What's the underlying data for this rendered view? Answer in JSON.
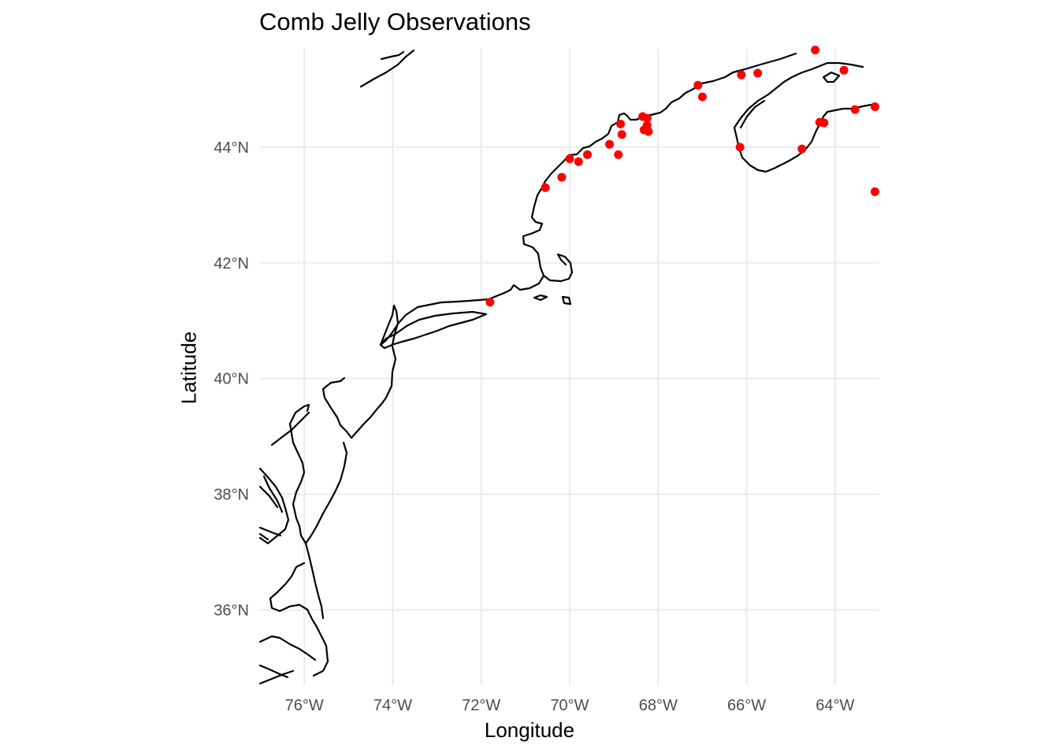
{
  "title": "Comb Jelly Observations",
  "colors": {
    "grid": "#ebebeb",
    "coast": "#000000",
    "point": "#ff0000",
    "tick_text": "#4d4d4d"
  },
  "chart_data": {
    "type": "scatter",
    "title": "Comb Jelly Observations",
    "xlabel": "Longitude",
    "ylabel": "Latitude",
    "xlim": [
      -77,
      -63
    ],
    "ylim": [
      34.7,
      45.7
    ],
    "grid": true,
    "legend": "none",
    "x_ticks": [
      {
        "value": -76,
        "label": "76°W"
      },
      {
        "value": -74,
        "label": "74°W"
      },
      {
        "value": -72,
        "label": "72°W"
      },
      {
        "value": -70,
        "label": "70°W"
      },
      {
        "value": -68,
        "label": "68°W"
      },
      {
        "value": -66,
        "label": "66°W"
      },
      {
        "value": -64,
        "label": "64°W"
      }
    ],
    "y_ticks": [
      {
        "value": 36,
        "label": "36°N"
      },
      {
        "value": 38,
        "label": "38°N"
      },
      {
        "value": 40,
        "label": "40°N"
      },
      {
        "value": 42,
        "label": "42°N"
      },
      {
        "value": 44,
        "label": "44°N"
      }
    ],
    "points": [
      {
        "lon": -71.8,
        "lat": 41.32
      },
      {
        "lon": -70.55,
        "lat": 43.3
      },
      {
        "lon": -70.18,
        "lat": 43.48
      },
      {
        "lon": -70.0,
        "lat": 43.8
      },
      {
        "lon": -69.8,
        "lat": 43.75
      },
      {
        "lon": -69.6,
        "lat": 43.87
      },
      {
        "lon": -69.1,
        "lat": 44.05
      },
      {
        "lon": -68.9,
        "lat": 43.87
      },
      {
        "lon": -68.85,
        "lat": 44.4
      },
      {
        "lon": -68.82,
        "lat": 44.22
      },
      {
        "lon": -68.35,
        "lat": 44.53
      },
      {
        "lon": -68.25,
        "lat": 44.5
      },
      {
        "lon": -68.32,
        "lat": 44.3
      },
      {
        "lon": -68.22,
        "lat": 44.27
      },
      {
        "lon": -68.25,
        "lat": 44.38
      },
      {
        "lon": -67.1,
        "lat": 45.07
      },
      {
        "lon": -67.0,
        "lat": 44.87
      },
      {
        "lon": -66.12,
        "lat": 45.25
      },
      {
        "lon": -65.75,
        "lat": 45.28
      },
      {
        "lon": -66.15,
        "lat": 44.0
      },
      {
        "lon": -64.75,
        "lat": 43.97
      },
      {
        "lon": -64.45,
        "lat": 45.68
      },
      {
        "lon": -64.35,
        "lat": 44.43
      },
      {
        "lon": -64.25,
        "lat": 44.42
      },
      {
        "lon": -63.8,
        "lat": 45.33
      },
      {
        "lon": -63.55,
        "lat": 44.65
      },
      {
        "lon": -63.1,
        "lat": 44.7
      },
      {
        "lon": -63.1,
        "lat": 43.23
      }
    ]
  }
}
